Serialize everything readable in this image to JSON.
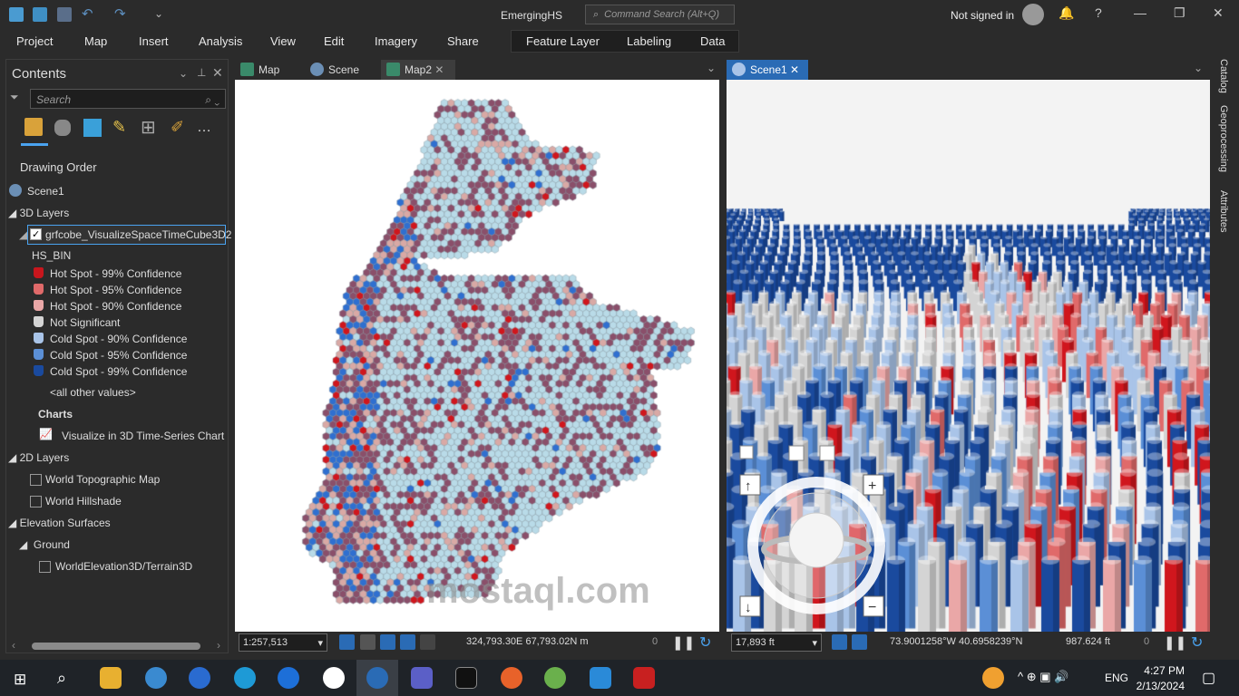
{
  "title_bar": {
    "app_title": "EmergingHS",
    "command_search_placeholder": "Command Search (Alt+Q)",
    "sign_in": "Not signed in"
  },
  "ribbon": {
    "tabs": [
      "Project",
      "Map",
      "Insert",
      "Analysis",
      "View",
      "Edit",
      "Imagery",
      "Share"
    ],
    "contextual_tabs": [
      "Feature Layer",
      "Labeling",
      "Data"
    ]
  },
  "contents": {
    "title": "Contents",
    "search_placeholder": "Search",
    "drawing_order": "Drawing Order",
    "scene": "Scene1",
    "layers_3d": "3D Layers",
    "layer_name": "grfcobe_VisualizeSpaceTimeCube3D2",
    "field": "HS_BIN",
    "legend": [
      {
        "label": "Hot Spot - 99% Confidence",
        "color": "#c8161d"
      },
      {
        "label": "Hot Spot - 95% Confidence",
        "color": "#e06a6a"
      },
      {
        "label": "Hot Spot - 90% Confidence",
        "color": "#eaa7a7"
      },
      {
        "label": "Not Significant",
        "color": "#d4d4d4"
      },
      {
        "label": "Cold Spot - 90% Confidence",
        "color": "#a9c4e8"
      },
      {
        "label": "Cold Spot - 95% Confidence",
        "color": "#5b8fd6"
      },
      {
        "label": "Cold Spot - 99% Confidence",
        "color": "#1a4a9e"
      }
    ],
    "other_values": "<all other values>",
    "charts": "Charts",
    "chart_item": "Visualize in 3D Time-Series Chart",
    "layers_2d": "2D Layers",
    "basemaps": [
      "World Topographic Map",
      "World Hillshade"
    ],
    "elevation": "Elevation Surfaces",
    "ground": "Ground",
    "terrain": "WorldElevation3D/Terrain3D"
  },
  "view_tabs": [
    "Map",
    "Scene",
    "Map2"
  ],
  "scene_tab": "Scene1",
  "map_status": {
    "scale": "1:257,513",
    "coords": "324,793.30E 67,793.02N m",
    "count": "0"
  },
  "scene_status": {
    "scale": "17,893 ft",
    "coords": "73.9001258°W 40.6958239°N",
    "elevation": "987.624 ft",
    "count": "0"
  },
  "right_tabs": [
    "Catalog",
    "Geoprocessing",
    "Attributes"
  ],
  "taskbar": {
    "lang": "ENG",
    "time": "4:27 PM",
    "date": "2/13/2024"
  },
  "watermark": "mostaql.com"
}
